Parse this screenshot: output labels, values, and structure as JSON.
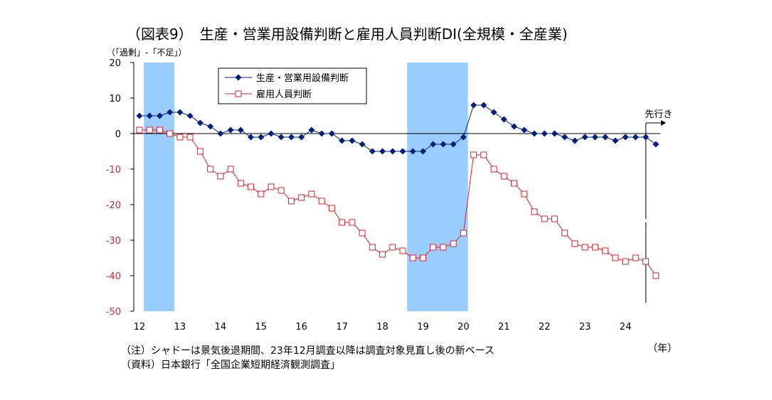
{
  "title": "（図表9）　生産・営業用設備判断と雇用人員判断DI(全規模・全産業)",
  "y_unit": "（「過剰」-「不足」）",
  "x_unit": "（年）",
  "note": "（注）シャドーは景気後退期間、23年12月調査以降は調査対象見直し後の新ベース",
  "source": "（資料）日本銀行「全国企業短期経済観測調査」",
  "forecast_label": "先行き",
  "chart_data": {
    "type": "line",
    "title": "生産・営業用設備判断と雇用人員判断DI(全規模・全産業)",
    "xlabel": "（年）",
    "ylabel": "（「過剰」-「不足」）",
    "ylim": [
      -50,
      20
    ],
    "yticks": [
      20,
      10,
      0,
      -10,
      -20,
      -30,
      -40,
      -50
    ],
    "xlim": [
      12,
      25
    ],
    "xticks": [
      12,
      13,
      14,
      15,
      16,
      17,
      18,
      19,
      20,
      21,
      22,
      23,
      24
    ],
    "grid": false,
    "legend_position": "top-center",
    "shaded_periods": [
      [
        12.25,
        13.0
      ],
      [
        18.75,
        20.25
      ]
    ],
    "forecast_line_x": 24.75,
    "x": [
      12.0,
      12.25,
      12.5,
      12.75,
      13.0,
      13.25,
      13.5,
      13.75,
      14.0,
      14.25,
      14.5,
      14.75,
      15.0,
      15.25,
      15.5,
      15.75,
      16.0,
      16.25,
      16.5,
      16.75,
      17.0,
      17.25,
      17.5,
      17.75,
      18.0,
      18.25,
      18.5,
      18.75,
      19.0,
      19.25,
      19.5,
      19.75,
      20.0,
      20.25,
      20.5,
      20.75,
      21.0,
      21.25,
      21.5,
      21.75,
      22.0,
      22.25,
      22.5,
      22.75,
      23.0,
      23.25,
      23.5,
      23.75,
      24.0,
      24.25,
      24.5,
      24.75,
      25.0
    ],
    "series": [
      {
        "name": "生産・営業用設備判断",
        "marker": "diamond",
        "color": "#002080",
        "values": [
          5,
          5,
          5,
          6,
          6,
          5,
          3,
          2,
          0,
          1,
          1,
          -1,
          -1,
          0,
          -1,
          -1,
          -1,
          1,
          0,
          0,
          -2,
          -2,
          -3,
          -5,
          -5,
          -5,
          -5,
          -5,
          -5,
          -3,
          -3,
          -3,
          -1,
          8,
          8,
          6,
          4,
          2,
          1,
          0,
          0,
          0,
          -1,
          -2,
          -1,
          -1,
          -1,
          -2,
          -1,
          -1,
          -1,
          -3,
          null
        ]
      },
      {
        "name": "雇用人員判断",
        "marker": "square-open",
        "color": "#e0202a",
        "values": [
          1,
          1,
          1,
          0,
          -1,
          -1,
          -5,
          -10,
          -12,
          -10,
          -14,
          -15,
          -17,
          -15,
          -16,
          -19,
          -18,
          -17,
          -19,
          -21,
          -25,
          -25,
          -28,
          -32,
          -34,
          -32,
          -33,
          -35,
          -35,
          -32,
          -32,
          -31,
          -28,
          -6,
          -6,
          -10,
          -12,
          -14,
          -17,
          -22,
          -24,
          -24,
          -28,
          -31,
          -32,
          -32,
          -33,
          -35,
          -36,
          -35,
          -36,
          -40,
          null
        ]
      }
    ]
  },
  "colors": {
    "shade": "#99ccff",
    "axis": "#000000",
    "equipment": "#002080",
    "employment": "#e0202a",
    "y_tick_positive": "#000000",
    "y_tick_negative": "#e0202a"
  }
}
